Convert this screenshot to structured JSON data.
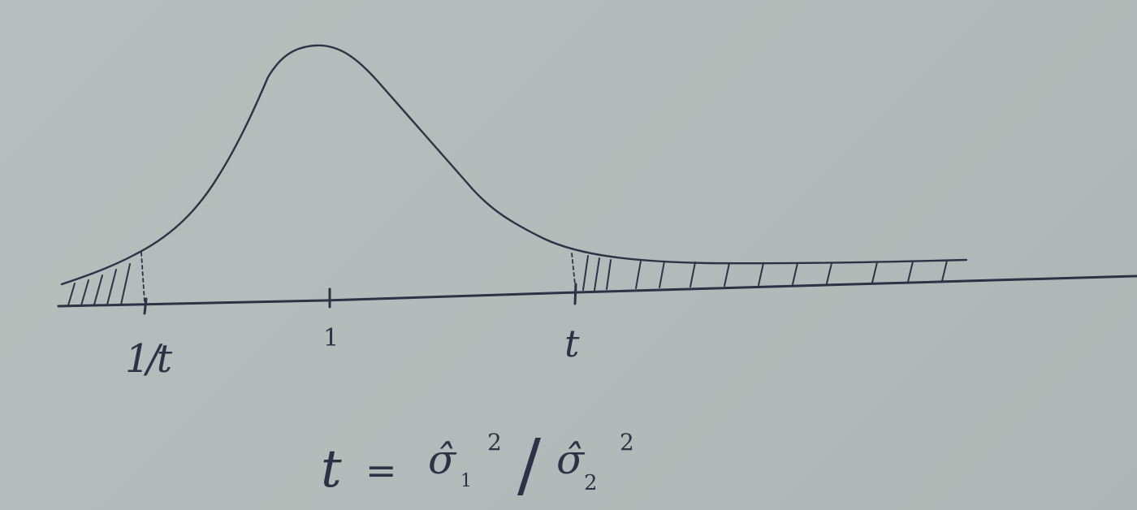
{
  "axis_labels": {
    "reciprocal_t": "1/t",
    "one": "1",
    "t": "t"
  },
  "formula": {
    "lhs": "t",
    "equals": "=",
    "numerator": "σ̂",
    "numerator_subscript": "1",
    "numerator_superscript": "2",
    "slash": "/",
    "denominator": "σ̂",
    "denominator_subscript": "2",
    "denominator_superscript": "2"
  },
  "colors": {
    "paper": "#b4bcbb",
    "ink": "#2f3146"
  }
}
